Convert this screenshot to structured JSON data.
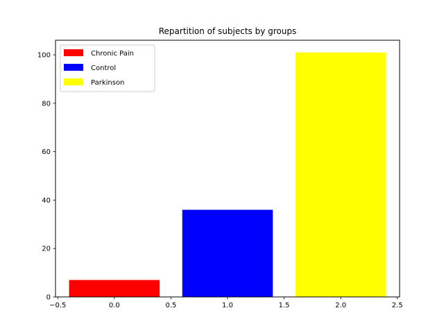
{
  "chart_data": {
    "type": "bar",
    "title": "Repartition of subjects by groups",
    "xlabel": "",
    "ylabel": "",
    "xlim": [
      -0.52,
      2.52
    ],
    "ylim": [
      0,
      106.05
    ],
    "bar_width": 0.8,
    "series": [
      {
        "name": "Chronic Pain",
        "x": 0,
        "value": 7,
        "color": "#ff0000"
      },
      {
        "name": "Control",
        "x": 1,
        "value": 36,
        "color": "#0000ff"
      },
      {
        "name": "Parkinson",
        "x": 2,
        "value": 101,
        "color": "#ffff00"
      }
    ],
    "xticks": [
      -0.5,
      0.0,
      0.5,
      1.0,
      1.5,
      2.0,
      2.5
    ],
    "xtick_labels": [
      "−0.5",
      "0.0",
      "0.5",
      "1.0",
      "1.5",
      "2.0",
      "2.5"
    ],
    "yticks": [
      0,
      20,
      40,
      60,
      80,
      100
    ],
    "ytick_labels": [
      "0",
      "20",
      "40",
      "60",
      "80",
      "100"
    ],
    "grid": false,
    "legend_position": "top-left"
  }
}
